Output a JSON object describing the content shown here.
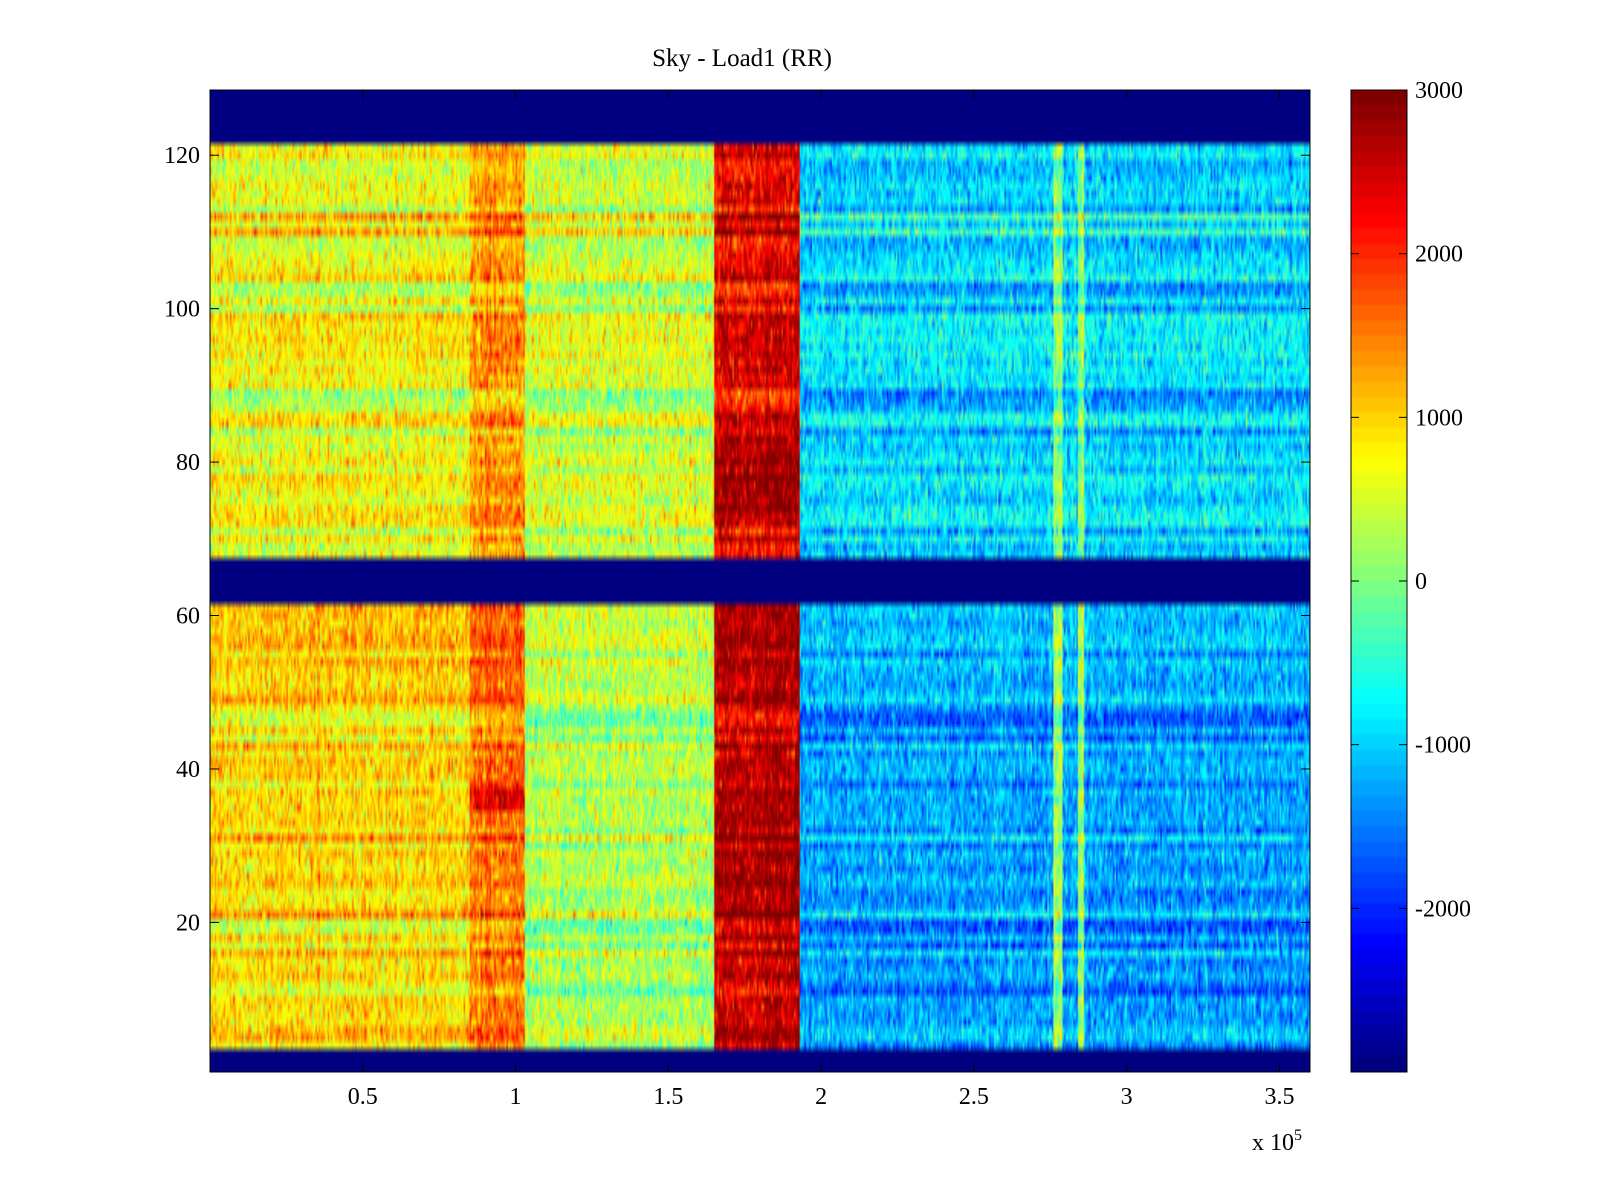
{
  "chart_data": {
    "type": "heatmap",
    "title": "Sky - Load1 (RR)",
    "xlabel": "",
    "ylabel": "",
    "x_multiplier": "x 10",
    "x_multiplier_exponent": "5",
    "xlim": [
      0,
      360000
    ],
    "ylim": [
      0.5,
      128.5
    ],
    "grid": false,
    "x_ticks": [
      50000,
      100000,
      150000,
      200000,
      250000,
      300000,
      350000
    ],
    "x_tick_labels": [
      "0.5",
      "1",
      "1.5",
      "2",
      "2.5",
      "3",
      "3.5"
    ],
    "y_ticks": [
      20,
      40,
      60,
      80,
      100,
      120
    ],
    "y_tick_labels": [
      "20",
      "40",
      "60",
      "80",
      "100",
      "120"
    ],
    "colormap": "jet",
    "clim": [
      -3000,
      3000
    ],
    "colorbar": {
      "ticks": [
        3000,
        2000,
        1000,
        0,
        -1000,
        -2000
      ],
      "tick_labels": [
        "3000",
        "2000",
        "1000",
        "0",
        "-1000",
        "-2000"
      ]
    },
    "masked_rows": [
      [
        1,
        3
      ],
      [
        62,
        67
      ],
      [
        122,
        128
      ]
    ],
    "regions": [
      {
        "x_from": 0,
        "x_to": 85000,
        "rows": [
          68,
          121
        ],
        "mean": 700
      },
      {
        "x_from": 85000,
        "x_to": 103000,
        "rows": [
          68,
          121
        ],
        "mean": 1350
      },
      {
        "x_from": 103000,
        "x_to": 165000,
        "rows": [
          68,
          121
        ],
        "mean": 450
      },
      {
        "x_from": 165000,
        "x_to": 193000,
        "rows": [
          68,
          121
        ],
        "mean": 2400
      },
      {
        "x_from": 193000,
        "x_to": 360000,
        "rows": [
          68,
          121
        ],
        "mean": -950
      },
      {
        "x_from": 0,
        "x_to": 85000,
        "rows": [
          4,
          61
        ],
        "mean": 900
      },
      {
        "x_from": 85000,
        "x_to": 103000,
        "rows": [
          4,
          61
        ],
        "mean": 1500
      },
      {
        "x_from": 103000,
        "x_to": 165000,
        "rows": [
          4,
          61
        ],
        "mean": 200
      },
      {
        "x_from": 165000,
        "x_to": 193000,
        "rows": [
          4,
          61
        ],
        "mean": 2550
      },
      {
        "x_from": 193000,
        "x_to": 360000,
        "rows": [
          4,
          61
        ],
        "mean": -1350
      }
    ],
    "hot_bands": [
      {
        "x_from": 165000,
        "x_to": 193000,
        "rows": [
          74,
          84
        ],
        "mean": 2850
      },
      {
        "x_from": 165000,
        "x_to": 193000,
        "rows": [
          18,
          38
        ],
        "mean": 2750
      },
      {
        "x_from": 85000,
        "x_to": 103000,
        "rows": [
          35,
          38
        ],
        "mean": 2300
      }
    ],
    "stripes": [
      {
        "x_from": 276000,
        "x_to": 279000,
        "mean": 200
      },
      {
        "x_from": 284000,
        "x_to": 286000,
        "mean": 100
      }
    ]
  }
}
